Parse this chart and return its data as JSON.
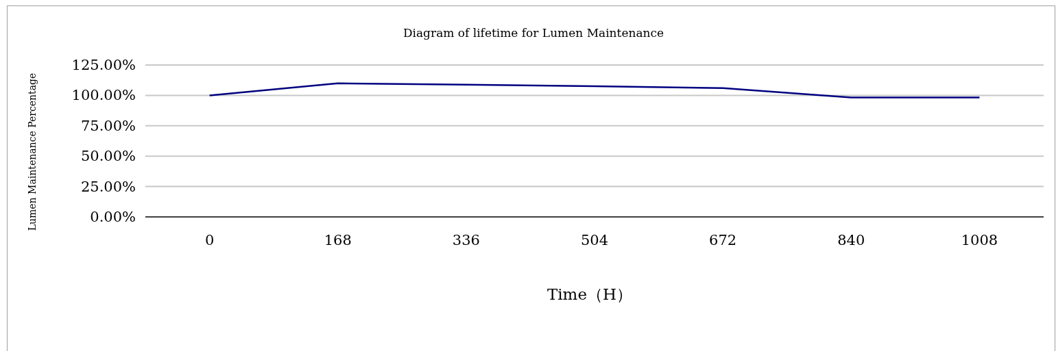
{
  "chart_data": {
    "type": "line",
    "title": "Diagram of lifetime for Lumen Maintenance",
    "xlabel": "Time（H）",
    "ylabel": "Lumen Maintenance Percentage",
    "categories": [
      "0",
      "168",
      "336",
      "504",
      "672",
      "840",
      "1008"
    ],
    "series": [
      {
        "color": "#000080",
        "values": [
          100,
          109.9,
          108.8,
          107.6,
          106.0,
          98.3,
          98.3
        ]
      }
    ],
    "ylim": [
      0,
      125
    ],
    "yticks": [
      {
        "value": 0,
        "label": "0.00%"
      },
      {
        "value": 25,
        "label": "25.00%"
      },
      {
        "value": 50,
        "label": "50.00%"
      },
      {
        "value": 75,
        "label": "75.00%"
      },
      {
        "value": 100,
        "label": "100.00%"
      },
      {
        "value": 125,
        "label": "125.00%"
      }
    ],
    "grid": "y",
    "marker": "none",
    "line_style": "solid"
  }
}
